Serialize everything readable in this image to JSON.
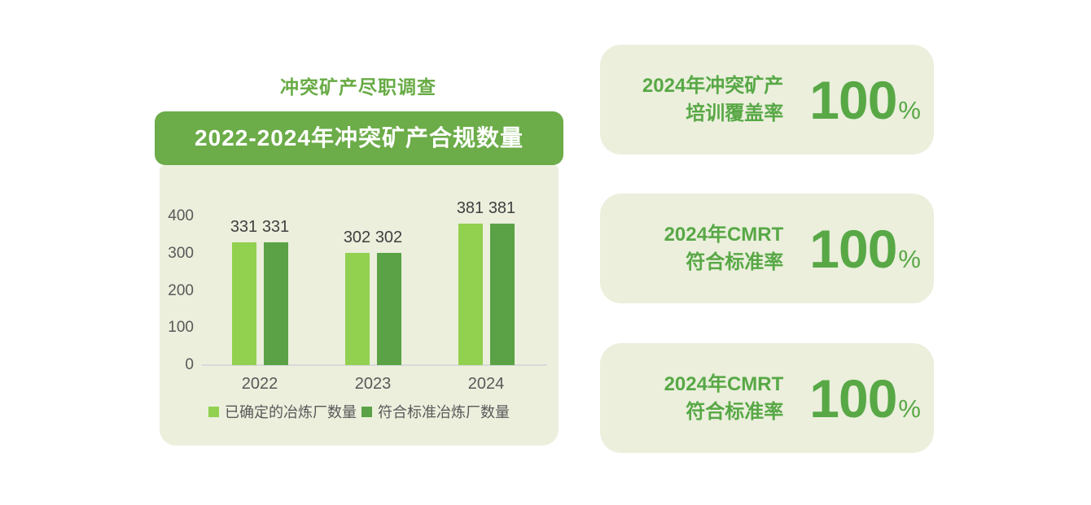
{
  "section": {
    "title": "冲突矿产尽职调查"
  },
  "chart_card": {
    "header": "2022-2024年冲突矿产合规数量"
  },
  "chart_data": {
    "type": "bar",
    "title": "2022-2024年冲突矿产合规数量",
    "categories": [
      "2022",
      "2023",
      "2024"
    ],
    "series": [
      {
        "name": "已确定的冶炼厂数量",
        "color": "#92d050",
        "values": [
          331,
          302,
          381
        ]
      },
      {
        "name": "符合标准冶炼厂数量",
        "color": "#5aa245",
        "values": [
          331,
          302,
          381
        ]
      }
    ],
    "ylim": [
      0,
      400
    ],
    "yticks": [
      0,
      100,
      200,
      300,
      400
    ],
    "grid": false,
    "data_labels": true,
    "legend_position": "bottom"
  },
  "stat_cards": [
    {
      "label_line1": "2024年冲突矿产",
      "label_line2": "培训覆盖率",
      "value": "100",
      "unit": "%"
    },
    {
      "label_line1": "2024年CMRT",
      "label_line2": "符合标准率",
      "value": "100",
      "unit": "%"
    },
    {
      "label_line1": "2024年CMRT",
      "label_line2": "符合标准率",
      "value": "100",
      "unit": "%"
    }
  ],
  "colors": {
    "card_background": "#ebefdc",
    "header_band": "#6cac49",
    "title_green": "#68ab45",
    "stat_green": "#58a846",
    "bar_light": "#92d050",
    "bar_dark": "#5aa245",
    "axis_text": "#595959",
    "data_label_text": "#404040",
    "axis_line": "#d9d9d9"
  }
}
